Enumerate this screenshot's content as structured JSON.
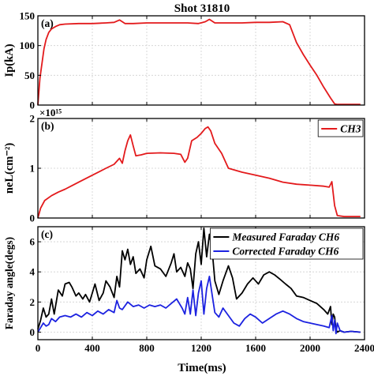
{
  "figure": {
    "title": "Shot 31810",
    "xlabel": "Time(ms)",
    "x_ticks": [
      "0",
      "400",
      "800",
      "1200",
      "1600",
      "2000",
      "2400"
    ]
  },
  "chart_data": [
    {
      "type": "line",
      "panel_label": "(a)",
      "ylabel": "Ip(kA)",
      "xlim": [
        0,
        2400
      ],
      "ylim": [
        0,
        150
      ],
      "y_ticks": [
        "0",
        "50",
        "100",
        "150"
      ],
      "grid": true,
      "series": [
        {
          "color": "#e31a1c",
          "x": [
            0,
            15,
            30,
            45,
            60,
            80,
            100,
            130,
            160,
            200,
            300,
            400,
            500,
            560,
            600,
            640,
            700,
            800,
            900,
            1000,
            1100,
            1180,
            1230,
            1260,
            1300,
            1400,
            1500,
            1600,
            1700,
            1800,
            1850,
            1900,
            1950,
            2000,
            2050,
            2100,
            2150,
            2180,
            2200,
            2250,
            2300,
            2370
          ],
          "y": [
            0,
            45,
            70,
            95,
            110,
            122,
            128,
            132,
            135,
            136,
            137,
            137,
            138,
            139,
            143,
            137,
            137,
            138,
            138,
            138,
            138,
            137,
            140,
            144,
            138,
            138,
            138,
            139,
            139,
            140,
            135,
            105,
            85,
            67,
            50,
            30,
            12,
            2,
            1,
            1,
            1,
            1
          ]
        }
      ]
    },
    {
      "type": "line",
      "panel_label": "(b)",
      "ylabel": "neL(cm⁻²)",
      "exponent_label": "×10¹⁵",
      "xlim": [
        0,
        2400
      ],
      "ylim": [
        0,
        2
      ],
      "y_ticks": [
        "0",
        "1",
        "2"
      ],
      "grid": true,
      "legend_position": "top-right",
      "series": [
        {
          "name": "CH3",
          "color": "#e31a1c",
          "x": [
            0,
            20,
            50,
            100,
            150,
            200,
            250,
            300,
            400,
            500,
            560,
            600,
            620,
            640,
            660,
            680,
            700,
            720,
            760,
            800,
            900,
            1000,
            1050,
            1080,
            1100,
            1130,
            1170,
            1200,
            1230,
            1250,
            1270,
            1300,
            1350,
            1400,
            1500,
            1600,
            1700,
            1800,
            1900,
            2000,
            2100,
            2140,
            2160,
            2180,
            2200,
            2250,
            2300,
            2370
          ],
          "y": [
            0,
            0.2,
            0.35,
            0.45,
            0.52,
            0.58,
            0.65,
            0.72,
            0.86,
            1.0,
            1.08,
            1.2,
            1.1,
            1.35,
            1.55,
            1.67,
            1.45,
            1.25,
            1.27,
            1.3,
            1.31,
            1.3,
            1.28,
            1.12,
            1.2,
            1.55,
            1.62,
            1.7,
            1.8,
            1.83,
            1.75,
            1.5,
            1.3,
            1.0,
            0.92,
            0.86,
            0.8,
            0.72,
            0.68,
            0.66,
            0.64,
            0.62,
            0.73,
            0.25,
            0.05,
            0.03,
            0.03,
            0.03
          ]
        }
      ]
    },
    {
      "type": "line",
      "panel_label": "(c)",
      "ylabel": "Faraday angle(degs)",
      "xlim": [
        0,
        2400
      ],
      "ylim": [
        -0.5,
        7
      ],
      "y_ticks": [
        "0",
        "2",
        "4",
        "6"
      ],
      "grid": true,
      "legend_position": "top-right",
      "series": [
        {
          "name": "Measured Faraday CH6",
          "color": "#000000",
          "x": [
            0,
            20,
            40,
            60,
            80,
            100,
            120,
            150,
            180,
            200,
            230,
            250,
            280,
            300,
            330,
            350,
            380,
            400,
            420,
            450,
            480,
            500,
            530,
            560,
            580,
            600,
            620,
            640,
            660,
            680,
            700,
            720,
            750,
            780,
            800,
            830,
            860,
            900,
            940,
            980,
            1000,
            1020,
            1050,
            1080,
            1100,
            1120,
            1140,
            1160,
            1180,
            1200,
            1220,
            1240,
            1260,
            1280,
            1300,
            1330,
            1360,
            1400,
            1430,
            1460,
            1500,
            1540,
            1580,
            1620,
            1660,
            1700,
            1740,
            1780,
            1820,
            1860,
            1900,
            1950,
            2000,
            2050,
            2100,
            2130,
            2150,
            2160,
            2170,
            2180,
            2190,
            2200,
            2220,
            2250,
            2300,
            2370
          ],
          "y": [
            0.2,
            0.8,
            1.6,
            1.0,
            1.2,
            2.2,
            1.2,
            2.8,
            2.4,
            3.2,
            3.3,
            3.0,
            2.4,
            2.6,
            2.2,
            2.5,
            2.0,
            2.6,
            3.2,
            2.1,
            2.6,
            3.4,
            3.0,
            2.3,
            3.7,
            3.0,
            5.4,
            4.8,
            5.5,
            4.5,
            5.0,
            3.9,
            4.2,
            3.6,
            4.8,
            5.7,
            4.4,
            4.2,
            3.7,
            4.6,
            5.2,
            4.0,
            4.3,
            3.7,
            4.6,
            4.2,
            2.9,
            5.2,
            6.0,
            4.5,
            6.9,
            5.0,
            6.5,
            5.5,
            3.4,
            2.5,
            3.4,
            4.4,
            3.6,
            2.2,
            2.6,
            3.2,
            3.6,
            3.2,
            3.8,
            4.0,
            3.8,
            3.5,
            3.2,
            2.9,
            2.4,
            2.3,
            2.1,
            1.9,
            1.5,
            1.2,
            1.7,
            0.5,
            1.2,
            1.0,
            0.2,
            0.0,
            0.1,
            0.0,
            0.05,
            0.0
          ]
        },
        {
          "name": "Corrected Faraday CH6",
          "color": "#1c22e0",
          "x": [
            0,
            20,
            40,
            60,
            80,
            100,
            130,
            160,
            200,
            240,
            280,
            320,
            360,
            400,
            440,
            480,
            520,
            560,
            580,
            600,
            620,
            660,
            700,
            740,
            780,
            820,
            860,
            900,
            940,
            980,
            1020,
            1060,
            1080,
            1100,
            1120,
            1140,
            1160,
            1180,
            1200,
            1220,
            1240,
            1260,
            1280,
            1300,
            1330,
            1360,
            1400,
            1440,
            1480,
            1520,
            1560,
            1600,
            1650,
            1700,
            1750,
            1800,
            1850,
            1900,
            1950,
            2000,
            2050,
            2100,
            2140,
            2160,
            2170,
            2180,
            2190,
            2200,
            2220,
            2250,
            2300,
            2370
          ],
          "y": [
            0.0,
            0.3,
            0.6,
            0.4,
            0.5,
            0.9,
            0.7,
            1.0,
            1.1,
            1.0,
            1.2,
            1.0,
            1.3,
            1.1,
            1.4,
            1.2,
            1.5,
            1.3,
            2.1,
            1.6,
            1.5,
            2.0,
            1.7,
            1.8,
            1.6,
            1.8,
            1.7,
            1.8,
            1.6,
            1.9,
            2.2,
            1.6,
            1.2,
            2.3,
            1.2,
            2.8,
            1.1,
            2.6,
            3.4,
            1.2,
            2.9,
            3.7,
            2.5,
            1.3,
            1.0,
            1.6,
            1.1,
            0.6,
            0.4,
            0.9,
            1.2,
            1.0,
            0.6,
            0.9,
            1.2,
            1.4,
            1.2,
            0.9,
            0.7,
            0.6,
            0.5,
            0.4,
            0.3,
            1.1,
            0.1,
            0.8,
            -0.1,
            0.6,
            0.1,
            0.0,
            0.05,
            0.0
          ]
        }
      ]
    }
  ]
}
